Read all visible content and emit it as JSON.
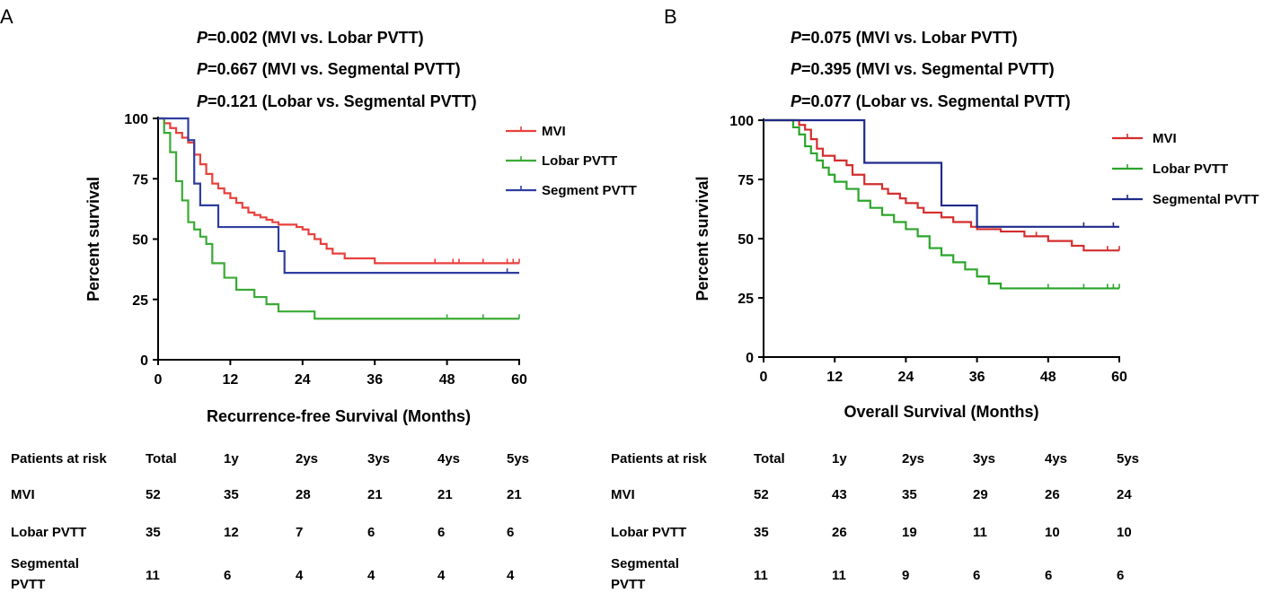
{
  "chart_data": [
    {
      "type": "line",
      "subtype": "kaplan-meier",
      "panel_label": "A",
      "title_lines": [
        {
          "prefix": "P",
          "text": "=0.002 (MVI vs. Lobar PVTT)"
        },
        {
          "prefix": "P",
          "text": "=0.667 (MVI vs. Segmental PVTT)"
        },
        {
          "prefix": "P",
          "text": "=0.121 (Lobar vs. Segmental PVTT)"
        }
      ],
      "xlabel": "Recurrence-free Survival (Months)",
      "ylabel": "Percent survival",
      "xlim": [
        0,
        60
      ],
      "ylim": [
        0,
        100
      ],
      "xticks": [
        0,
        12,
        24,
        36,
        48,
        60
      ],
      "yticks": [
        0,
        25,
        50,
        75,
        100
      ],
      "legend_position": "top-right",
      "series": [
        {
          "name": "MVI",
          "color": "#e8413c",
          "x": [
            0,
            1,
            2,
            3,
            4,
            5,
            6,
            7,
            8,
            9,
            10,
            11,
            12,
            13,
            14,
            15,
            16,
            17,
            18,
            19,
            20,
            22,
            23,
            24,
            25,
            26,
            27,
            28,
            29,
            31,
            36,
            60
          ],
          "y": [
            100,
            98,
            96,
            94,
            92,
            90,
            85,
            81,
            77,
            73,
            71,
            69,
            67,
            65,
            63,
            61,
            60,
            59,
            58,
            57,
            56,
            56,
            55,
            54,
            52,
            50,
            48,
            46,
            44,
            42,
            40,
            40
          ],
          "censor_x": [
            36,
            46,
            49,
            50,
            54,
            58,
            59,
            60
          ]
        },
        {
          "name": "Lobar PVTT",
          "color": "#3aaa35",
          "x": [
            0,
            1,
            2,
            3,
            4,
            5,
            6,
            7,
            8,
            9,
            11,
            13,
            16,
            18,
            20,
            26,
            60
          ],
          "y": [
            100,
            94,
            86,
            74,
            66,
            57,
            54,
            51,
            48,
            40,
            34,
            29,
            26,
            23,
            20,
            17,
            17
          ],
          "censor_x": [
            48,
            54,
            60
          ]
        },
        {
          "name": "Segment PVTT",
          "color": "#2f3e9e",
          "x": [
            0,
            5,
            6,
            7,
            10,
            20,
            21,
            60
          ],
          "y": [
            100,
            91,
            73,
            64,
            55,
            45,
            36,
            36
          ],
          "censor_x": [
            58
          ]
        }
      ]
    },
    {
      "type": "line",
      "subtype": "kaplan-meier",
      "panel_label": "B",
      "title_lines": [
        {
          "prefix": "P",
          "text": "=0.075 (MVI vs. Lobar PVTT)"
        },
        {
          "prefix": "P",
          "text": "=0.395 (MVI vs. Segmental PVTT)"
        },
        {
          "prefix": "P",
          "text": "=0.077 (Lobar vs. Segmental PVTT)"
        }
      ],
      "xlabel": "Overall Survival (Months)",
      "ylabel": "Percent survival",
      "xlim": [
        0,
        60
      ],
      "ylim": [
        0,
        100
      ],
      "xticks": [
        0,
        12,
        24,
        36,
        48,
        60
      ],
      "yticks": [
        0,
        25,
        50,
        75,
        100
      ],
      "legend_position": "top-right",
      "series": [
        {
          "name": "MVI",
          "color": "#d42d2d",
          "x": [
            0,
            6,
            7,
            8,
            9,
            10,
            12,
            14,
            15,
            17,
            20,
            21,
            23,
            24,
            26,
            27,
            30,
            32,
            35,
            36,
            40,
            44,
            48,
            52,
            54,
            60
          ],
          "y": [
            100,
            98,
            96,
            92,
            88,
            85,
            83,
            81,
            77,
            73,
            71,
            69,
            67,
            65,
            63,
            61,
            59,
            57,
            55,
            54,
            53,
            51,
            49,
            47,
            45,
            45
          ],
          "censor_x": [
            46,
            48,
            54,
            58,
            60
          ]
        },
        {
          "name": "Lobar PVTT",
          "color": "#2aa52a",
          "x": [
            0,
            5,
            6,
            7,
            8,
            9,
            10,
            11,
            12,
            14,
            16,
            18,
            20,
            22,
            24,
            26,
            28,
            30,
            32,
            34,
            36,
            38,
            40,
            60
          ],
          "y": [
            100,
            97,
            94,
            89,
            86,
            83,
            80,
            77,
            74,
            71,
            66,
            63,
            60,
            57,
            54,
            51,
            46,
            43,
            40,
            37,
            34,
            31,
            29,
            29
          ],
          "censor_x": [
            48,
            54,
            58,
            59,
            60
          ]
        },
        {
          "name": "Segmental PVTT",
          "color": "#1f2a8c",
          "x": [
            0,
            16,
            17,
            29,
            30,
            36,
            60
          ],
          "y": [
            100,
            100,
            82,
            82,
            64,
            55,
            55
          ],
          "censor_x": [
            54,
            59
          ]
        }
      ]
    }
  ],
  "risk_tables": [
    {
      "header": [
        "Patients at risk",
        "Total",
        "1y",
        "2ys",
        "3ys",
        "4ys",
        "5ys"
      ],
      "rows": [
        {
          "label": [
            "MVI"
          ],
          "values": [
            "52",
            "35",
            "28",
            "21",
            "21",
            "21"
          ]
        },
        {
          "label": [
            "Lobar PVTT"
          ],
          "values": [
            "35",
            "12",
            "7",
            "6",
            "6",
            "6"
          ]
        },
        {
          "label": [
            "Segmental",
            "PVTT"
          ],
          "values": [
            "11",
            "6",
            "4",
            "4",
            "4",
            "4"
          ]
        }
      ]
    },
    {
      "header": [
        "Patients at risk",
        "Total",
        "1y",
        "2ys",
        "3ys",
        "4ys",
        "5ys"
      ],
      "rows": [
        {
          "label": [
            "MVI"
          ],
          "values": [
            "52",
            "43",
            "35",
            "29",
            "26",
            "24"
          ]
        },
        {
          "label": [
            "Lobar PVTT"
          ],
          "values": [
            "35",
            "26",
            "19",
            "11",
            "10",
            "10"
          ]
        },
        {
          "label": [
            "Segmental",
            "PVTT"
          ],
          "values": [
            "11",
            "11",
            "9",
            "6",
            "6",
            "6"
          ]
        }
      ]
    }
  ]
}
